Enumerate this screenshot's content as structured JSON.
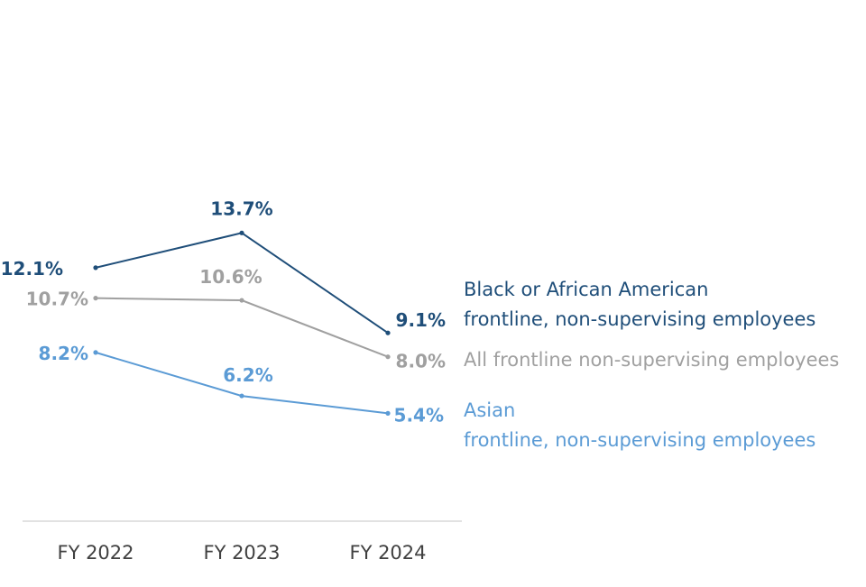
{
  "chart_data": {
    "type": "line",
    "title": "",
    "xlabel": "",
    "ylabel": "",
    "categories": [
      "FY 2022",
      "FY 2023",
      "FY 2024"
    ],
    "ylim": [
      0,
      20
    ],
    "grid": false,
    "series": [
      {
        "name": "Black or African American frontline, non-supervising employees",
        "legend_lines": [
          "Black or African American",
          "frontline, non-supervising employees"
        ],
        "values": [
          12.1,
          13.7,
          9.1
        ],
        "labels": [
          "12.1%",
          "13.7%",
          "9.1%"
        ],
        "color": "#1f4e79"
      },
      {
        "name": "All frontline non-supervising employees",
        "legend_lines": [
          "All frontline non-supervising employees"
        ],
        "values": [
          10.7,
          10.6,
          8.0
        ],
        "labels": [
          "10.7%",
          "10.6%",
          "8.0%"
        ],
        "color": "#a0a0a0"
      },
      {
        "name": "Asian frontline, non-supervising employees",
        "legend_lines": [
          "Asian",
          "frontline, non-supervising employees"
        ],
        "values": [
          8.2,
          6.2,
          5.4
        ],
        "labels": [
          "8.2%",
          "6.2%",
          "5.4%"
        ],
        "color": "#5b9bd5"
      }
    ]
  }
}
